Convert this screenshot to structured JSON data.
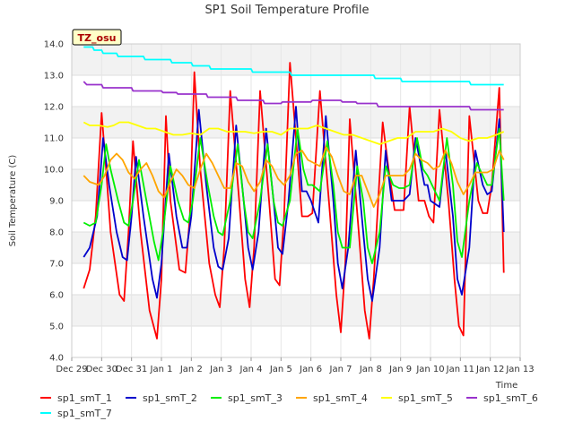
{
  "chart_data": {
    "type": "line",
    "title": "SP1 Soil Temperature Profile",
    "xlabel": "Time",
    "ylabel": "Soil Temperature (C)",
    "badge": "TZ_osu",
    "ylim": [
      4.0,
      14.0
    ],
    "xlim": [
      0,
      15
    ],
    "y_ticks": [
      "4.0",
      "5.0",
      "6.0",
      "7.0",
      "8.0",
      "9.0",
      "10.0",
      "11.0",
      "12.0",
      "13.0",
      "14.0"
    ],
    "x_tick_labels": [
      "Dec 29",
      "Dec 30",
      "Dec 31",
      "Jan 1",
      "Jan 2",
      "Jan 3",
      "Jan 4",
      "Jan 5",
      "Jan 6",
      "Jan 7",
      "Jan 8",
      "Jan 9",
      "Jan 10",
      "Jan 11",
      "Jan 12",
      "Jan 13"
    ],
    "grid": true,
    "legend_position": "bottom",
    "series": [
      {
        "name": "sp1_smT_1",
        "color": "#ff0000",
        "x": [
          0.4,
          0.6,
          0.8,
          1.0,
          1.15,
          1.3,
          1.6,
          1.75,
          1.9,
          2.05,
          2.3,
          2.6,
          2.85,
          3.0,
          3.15,
          3.3,
          3.6,
          3.8,
          3.95,
          4.1,
          4.3,
          4.6,
          4.8,
          4.95,
          5.1,
          5.3,
          5.6,
          5.8,
          5.95,
          6.1,
          6.3,
          6.6,
          6.8,
          6.95,
          7.1,
          7.3,
          7.5,
          7.7,
          7.9,
          8.05,
          8.3,
          8.6,
          8.85,
          9.0,
          9.15,
          9.3,
          9.6,
          9.8,
          9.95,
          10.1,
          10.4,
          10.6,
          10.8,
          10.95,
          11.1,
          11.3,
          11.6,
          11.8,
          11.95,
          12.1,
          12.3,
          12.6,
          12.8,
          12.95,
          13.1,
          13.3,
          13.6,
          13.75,
          13.9,
          14.05,
          14.3,
          14.45
        ],
        "values": [
          6.2,
          6.8,
          8.5,
          11.8,
          10.0,
          8.0,
          6.0,
          5.8,
          8.0,
          10.9,
          8.0,
          5.5,
          4.6,
          6.5,
          11.7,
          9.0,
          6.8,
          6.7,
          8.5,
          13.1,
          10.0,
          7.0,
          6.0,
          5.6,
          7.5,
          12.5,
          9.0,
          6.5,
          5.6,
          7.5,
          12.5,
          9.0,
          6.5,
          6.3,
          8.5,
          13.4,
          11.0,
          8.5,
          8.5,
          8.6,
          12.5,
          9.0,
          6.0,
          4.8,
          7.0,
          11.6,
          8.0,
          5.5,
          4.6,
          6.5,
          11.5,
          10.0,
          8.7,
          8.7,
          8.7,
          12.0,
          9.0,
          9.0,
          8.5,
          8.3,
          11.9,
          9.0,
          6.5,
          5.0,
          4.7,
          11.7,
          9.0,
          8.6,
          8.6,
          9.5,
          12.6,
          6.7
        ]
      },
      {
        "name": "sp1_smT_2",
        "color": "#0000cc",
        "x": [
          0.4,
          0.6,
          0.85,
          1.05,
          1.25,
          1.5,
          1.7,
          1.85,
          2.0,
          2.15,
          2.4,
          2.7,
          2.85,
          3.0,
          3.25,
          3.5,
          3.7,
          3.85,
          4.0,
          4.25,
          4.5,
          4.75,
          4.9,
          5.05,
          5.25,
          5.5,
          5.75,
          5.9,
          6.05,
          6.25,
          6.5,
          6.75,
          6.9,
          7.05,
          7.25,
          7.5,
          7.7,
          7.85,
          8.0,
          8.25,
          8.5,
          8.75,
          8.9,
          9.05,
          9.25,
          9.5,
          9.75,
          9.9,
          10.05,
          10.3,
          10.5,
          10.7,
          10.9,
          11.1,
          11.3,
          11.5,
          11.8,
          11.9,
          12.0,
          12.3,
          12.5,
          12.75,
          12.9,
          13.05,
          13.3,
          13.5,
          13.75,
          13.9,
          14.05,
          14.3,
          14.45
        ],
        "values": [
          7.2,
          7.5,
          8.5,
          11.0,
          9.5,
          8.0,
          7.2,
          7.1,
          8.5,
          10.4,
          8.5,
          6.5,
          5.9,
          7.0,
          10.5,
          8.5,
          7.5,
          7.5,
          8.5,
          11.9,
          9.5,
          7.5,
          6.9,
          6.8,
          7.8,
          11.4,
          9.0,
          7.5,
          6.8,
          8.0,
          11.3,
          9.0,
          7.5,
          7.3,
          9.0,
          12.0,
          9.3,
          9.3,
          9.0,
          8.3,
          11.7,
          9.0,
          7.0,
          6.2,
          7.5,
          10.6,
          8.0,
          6.5,
          5.8,
          7.5,
          10.6,
          9.0,
          9.0,
          9.0,
          9.2,
          11.0,
          9.5,
          9.5,
          9.0,
          8.8,
          10.6,
          8.5,
          6.5,
          6.0,
          7.5,
          10.6,
          9.5,
          9.2,
          9.3,
          11.6,
          8.0
        ]
      },
      {
        "name": "sp1_smT_3",
        "color": "#00ee00",
        "x": [
          0.4,
          0.6,
          0.8,
          1.0,
          1.15,
          1.3,
          1.55,
          1.75,
          1.9,
          2.05,
          2.25,
          2.5,
          2.75,
          2.9,
          3.05,
          3.3,
          3.55,
          3.75,
          3.9,
          4.05,
          4.3,
          4.55,
          4.75,
          4.9,
          5.05,
          5.3,
          5.55,
          5.75,
          5.9,
          6.05,
          6.3,
          6.55,
          6.75,
          6.9,
          7.05,
          7.3,
          7.55,
          7.75,
          7.9,
          8.05,
          8.3,
          8.55,
          8.75,
          8.9,
          9.05,
          9.3,
          9.55,
          9.75,
          9.9,
          10.05,
          10.3,
          10.5,
          10.75,
          10.95,
          11.1,
          11.3,
          11.55,
          11.75,
          11.9,
          12.05,
          12.3,
          12.55,
          12.75,
          12.9,
          13.05,
          13.3,
          13.55,
          13.75,
          13.9,
          14.05,
          14.3,
          14.45
        ],
        "values": [
          8.3,
          8.2,
          8.3,
          9.5,
          10.8,
          10.0,
          9.0,
          8.3,
          8.2,
          9.0,
          10.3,
          9.0,
          7.7,
          7.1,
          8.0,
          10.1,
          9.0,
          8.4,
          8.3,
          9.0,
          11.0,
          9.5,
          8.5,
          8.0,
          7.9,
          9.0,
          10.8,
          9.0,
          8.0,
          7.8,
          9.0,
          10.8,
          9.0,
          8.3,
          8.2,
          9.0,
          11.3,
          10.0,
          9.5,
          9.5,
          9.3,
          10.9,
          9.5,
          8.0,
          7.5,
          7.5,
          10.1,
          9.0,
          7.5,
          7.0,
          8.0,
          10.1,
          9.5,
          9.4,
          9.4,
          9.5,
          11.0,
          10.0,
          9.8,
          9.5,
          9.0,
          11.0,
          9.5,
          7.7,
          7.2,
          9.0,
          10.2,
          9.8,
          9.5,
          9.5,
          11.3,
          9.0
        ]
      },
      {
        "name": "sp1_smT_4",
        "color": "#ffa500",
        "x": [
          0.4,
          0.6,
          0.9,
          1.1,
          1.3,
          1.5,
          1.7,
          1.9,
          2.1,
          2.3,
          2.5,
          2.7,
          2.9,
          3.1,
          3.3,
          3.5,
          3.7,
          3.9,
          4.1,
          4.3,
          4.5,
          4.7,
          4.9,
          5.1,
          5.3,
          5.5,
          5.7,
          5.9,
          6.1,
          6.3,
          6.5,
          6.7,
          6.9,
          7.1,
          7.3,
          7.5,
          7.7,
          7.9,
          8.1,
          8.3,
          8.5,
          8.7,
          8.9,
          9.1,
          9.3,
          9.5,
          9.7,
          9.9,
          10.1,
          10.3,
          10.5,
          10.7,
          10.9,
          11.1,
          11.3,
          11.5,
          11.7,
          11.9,
          12.1,
          12.3,
          12.5,
          12.7,
          12.9,
          13.1,
          13.3,
          13.5,
          13.7,
          13.9,
          14.1,
          14.3,
          14.45
        ],
        "values": [
          9.8,
          9.6,
          9.5,
          9.8,
          10.3,
          10.5,
          10.3,
          9.9,
          9.7,
          10.0,
          10.2,
          9.8,
          9.3,
          9.1,
          9.6,
          10.0,
          9.8,
          9.5,
          9.4,
          10.0,
          10.5,
          10.2,
          9.8,
          9.4,
          9.4,
          10.2,
          10.1,
          9.6,
          9.3,
          9.6,
          10.3,
          10.1,
          9.7,
          9.5,
          9.8,
          10.5,
          10.6,
          10.3,
          10.2,
          10.1,
          10.7,
          10.4,
          9.8,
          9.3,
          9.2,
          9.8,
          9.8,
          9.3,
          8.8,
          9.2,
          9.8,
          9.8,
          9.8,
          9.8,
          10.0,
          10.5,
          10.3,
          10.2,
          10.0,
          10.1,
          10.6,
          10.2,
          9.6,
          9.2,
          9.5,
          9.9,
          9.9,
          9.9,
          10.0,
          10.6,
          10.3
        ]
      },
      {
        "name": "sp1_smT_5",
        "color": "#ffff00",
        "x": [
          0.4,
          0.6,
          0.9,
          1.2,
          1.4,
          1.6,
          1.9,
          2.2,
          2.5,
          2.8,
          3.1,
          3.4,
          3.7,
          4.0,
          4.3,
          4.6,
          4.9,
          5.2,
          5.5,
          5.8,
          6.1,
          6.4,
          6.7,
          7.0,
          7.3,
          7.6,
          7.9,
          8.2,
          8.5,
          8.8,
          9.1,
          9.4,
          9.7,
          10.0,
          10.3,
          10.6,
          10.9,
          11.2,
          11.5,
          11.8,
          12.1,
          12.4,
          12.7,
          13.0,
          13.3,
          13.6,
          13.9,
          14.2,
          14.45
        ],
        "values": [
          11.5,
          11.4,
          11.4,
          11.35,
          11.4,
          11.5,
          11.5,
          11.4,
          11.3,
          11.3,
          11.2,
          11.1,
          11.1,
          11.15,
          11.1,
          11.3,
          11.3,
          11.2,
          11.2,
          11.2,
          11.15,
          11.2,
          11.2,
          11.1,
          11.3,
          11.3,
          11.3,
          11.4,
          11.3,
          11.2,
          11.1,
          11.1,
          11.0,
          10.9,
          10.8,
          10.9,
          11.0,
          11.0,
          11.2,
          11.2,
          11.2,
          11.3,
          11.2,
          11.0,
          10.9,
          11.0,
          11.0,
          11.1,
          11.2
        ]
      },
      {
        "name": "sp1_smT_6",
        "color": "#9932cc",
        "x": [
          0.4,
          0.5,
          1.0,
          1.05,
          2.0,
          2.05,
          3.0,
          3.05,
          3.5,
          3.55,
          4.5,
          4.55,
          5.5,
          5.55,
          6.4,
          6.45,
          7.0,
          7.05,
          8.0,
          8.05,
          9.0,
          9.05,
          9.5,
          9.55,
          10.2,
          10.25,
          11.0,
          11.05,
          13.3,
          13.35,
          14.45
        ],
        "values": [
          12.8,
          12.7,
          12.7,
          12.6,
          12.6,
          12.5,
          12.5,
          12.45,
          12.45,
          12.4,
          12.4,
          12.3,
          12.3,
          12.2,
          12.2,
          12.1,
          12.1,
          12.15,
          12.15,
          12.2,
          12.2,
          12.15,
          12.15,
          12.1,
          12.1,
          12.0,
          12.0,
          12.0,
          12.0,
          11.9,
          11.9
        ]
      },
      {
        "name": "sp1_smT_7",
        "color": "#00ffff",
        "x": [
          0.4,
          0.7,
          0.75,
          1.0,
          1.05,
          1.5,
          1.55,
          2.4,
          2.45,
          3.3,
          3.35,
          4.0,
          4.05,
          4.6,
          4.65,
          6.0,
          6.05,
          7.3,
          7.35,
          10.1,
          10.15,
          11.0,
          11.05,
          13.3,
          13.35,
          14.45
        ],
        "values": [
          13.9,
          13.9,
          13.8,
          13.8,
          13.7,
          13.7,
          13.6,
          13.6,
          13.5,
          13.5,
          13.4,
          13.4,
          13.3,
          13.3,
          13.2,
          13.2,
          13.1,
          13.1,
          13.0,
          13.0,
          12.9,
          12.9,
          12.8,
          12.8,
          12.7,
          12.7
        ]
      }
    ]
  }
}
